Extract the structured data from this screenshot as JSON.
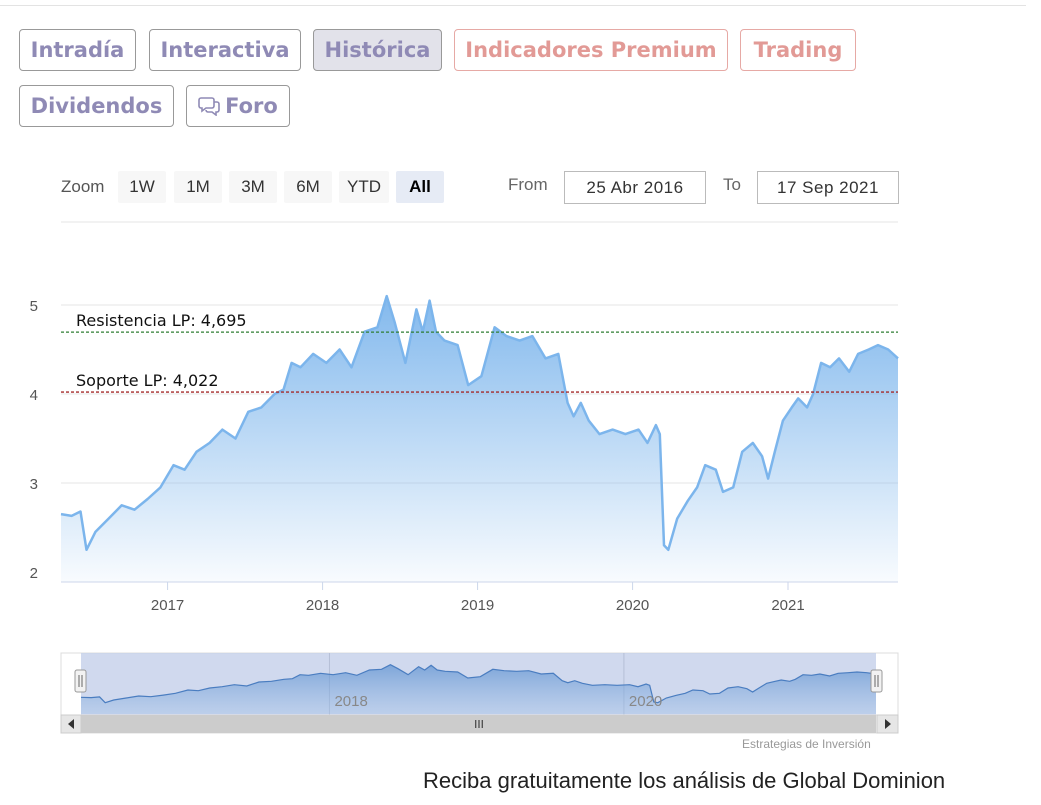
{
  "tabs": [
    {
      "label": "Intradía",
      "active": false,
      "premium": false
    },
    {
      "label": "Interactiva",
      "active": false,
      "premium": false
    },
    {
      "label": "Histórica",
      "active": true,
      "premium": false
    },
    {
      "label": "Indicadores Premium",
      "active": false,
      "premium": true
    },
    {
      "label": "Trading",
      "active": false,
      "premium": true
    },
    {
      "label": "Dividendos",
      "active": false,
      "premium": false
    },
    {
      "label": "Foro",
      "active": false,
      "premium": false,
      "icon": "speech-bubbles-icon"
    }
  ],
  "range_selector": {
    "zoom_label": "Zoom",
    "buttons": [
      "1W",
      "1M",
      "3M",
      "6M",
      "YTD",
      "All"
    ],
    "selected": "All",
    "from_label": "From",
    "from_value": "25 Abr 2016",
    "to_label": "To",
    "to_value": "17 Sep 2021"
  },
  "chart_data": {
    "type": "area",
    "x_type": "date",
    "xlim": [
      "2016-04-25",
      "2021-09-17"
    ],
    "ylim": [
      2,
      5
    ],
    "y_ticks": [
      2,
      3,
      4,
      5
    ],
    "x_ticks": [
      "2017",
      "2018",
      "2019",
      "2020",
      "2021"
    ],
    "grid": true,
    "legend": "none",
    "series": [
      {
        "color": "#7cb5ec",
        "points": [
          [
            "2016-04-25",
            2.65
          ],
          [
            "2016-05-20",
            2.63
          ],
          [
            "2016-06-10",
            2.68
          ],
          [
            "2016-06-24",
            2.25
          ],
          [
            "2016-07-15",
            2.45
          ],
          [
            "2016-08-15",
            2.6
          ],
          [
            "2016-09-15",
            2.75
          ],
          [
            "2016-10-15",
            2.7
          ],
          [
            "2016-11-15",
            2.82
          ],
          [
            "2016-12-15",
            2.95
          ],
          [
            "2017-01-15",
            3.2
          ],
          [
            "2017-02-10",
            3.15
          ],
          [
            "2017-03-10",
            3.35
          ],
          [
            "2017-04-10",
            3.45
          ],
          [
            "2017-05-10",
            3.6
          ],
          [
            "2017-06-10",
            3.5
          ],
          [
            "2017-07-10",
            3.8
          ],
          [
            "2017-08-10",
            3.85
          ],
          [
            "2017-09-10",
            4.0
          ],
          [
            "2017-10-01",
            4.05
          ],
          [
            "2017-10-20",
            4.35
          ],
          [
            "2017-11-10",
            4.3
          ],
          [
            "2017-12-10",
            4.45
          ],
          [
            "2018-01-10",
            4.35
          ],
          [
            "2018-02-10",
            4.5
          ],
          [
            "2018-03-10",
            4.3
          ],
          [
            "2018-04-10",
            4.7
          ],
          [
            "2018-05-10",
            4.75
          ],
          [
            "2018-06-01",
            5.1
          ],
          [
            "2018-06-20",
            4.8
          ],
          [
            "2018-07-15",
            4.35
          ],
          [
            "2018-08-10",
            4.95
          ],
          [
            "2018-08-25",
            4.7
          ],
          [
            "2018-09-10",
            5.05
          ],
          [
            "2018-09-25",
            4.7
          ],
          [
            "2018-10-15",
            4.6
          ],
          [
            "2018-11-15",
            4.55
          ],
          [
            "2018-12-10",
            4.1
          ],
          [
            "2019-01-10",
            4.2
          ],
          [
            "2019-02-10",
            4.75
          ],
          [
            "2019-03-10",
            4.65
          ],
          [
            "2019-04-10",
            4.6
          ],
          [
            "2019-05-10",
            4.65
          ],
          [
            "2019-06-10",
            4.4
          ],
          [
            "2019-07-10",
            4.45
          ],
          [
            "2019-08-01",
            3.9
          ],
          [
            "2019-08-15",
            3.75
          ],
          [
            "2019-09-01",
            3.9
          ],
          [
            "2019-09-20",
            3.7
          ],
          [
            "2019-10-15",
            3.55
          ],
          [
            "2019-11-15",
            3.6
          ],
          [
            "2019-12-15",
            3.55
          ],
          [
            "2020-01-15",
            3.6
          ],
          [
            "2020-02-05",
            3.45
          ],
          [
            "2020-02-25",
            3.65
          ],
          [
            "2020-03-05",
            3.55
          ],
          [
            "2020-03-15",
            2.3
          ],
          [
            "2020-03-25",
            2.25
          ],
          [
            "2020-04-15",
            2.6
          ],
          [
            "2020-05-10",
            2.8
          ],
          [
            "2020-06-01",
            2.95
          ],
          [
            "2020-06-20",
            3.2
          ],
          [
            "2020-07-15",
            3.15
          ],
          [
            "2020-08-01",
            2.9
          ],
          [
            "2020-08-25",
            2.95
          ],
          [
            "2020-09-15",
            3.35
          ],
          [
            "2020-10-10",
            3.45
          ],
          [
            "2020-11-01",
            3.3
          ],
          [
            "2020-11-15",
            3.05
          ],
          [
            "2020-12-01",
            3.35
          ],
          [
            "2020-12-20",
            3.7
          ],
          [
            "2021-01-10",
            3.85
          ],
          [
            "2021-01-25",
            3.95
          ],
          [
            "2021-02-15",
            3.85
          ],
          [
            "2021-03-01",
            4.0
          ],
          [
            "2021-03-20",
            4.35
          ],
          [
            "2021-04-10",
            4.3
          ],
          [
            "2021-05-01",
            4.4
          ],
          [
            "2021-05-25",
            4.25
          ],
          [
            "2021-06-15",
            4.45
          ],
          [
            "2021-07-10",
            4.5
          ],
          [
            "2021-08-01",
            4.55
          ],
          [
            "2021-08-25",
            4.5
          ],
          [
            "2021-09-17",
            4.4
          ]
        ]
      }
    ],
    "plot_lines": [
      {
        "label": "Resistencia LP: 4,695",
        "value": 4.695,
        "color": "#2e7d32",
        "style": "dashed"
      },
      {
        "label": "Soporte LP: 4,022",
        "value": 4.022,
        "color": "#a52a2a",
        "style": "dashed"
      }
    ],
    "navigator": {
      "x_ticks": [
        "2018",
        "2020"
      ],
      "scrollbar_grip": "III"
    }
  },
  "credits": "Estrategias de Inversión",
  "footer": "Reciba gratuitamente los análisis de Global Dominion"
}
